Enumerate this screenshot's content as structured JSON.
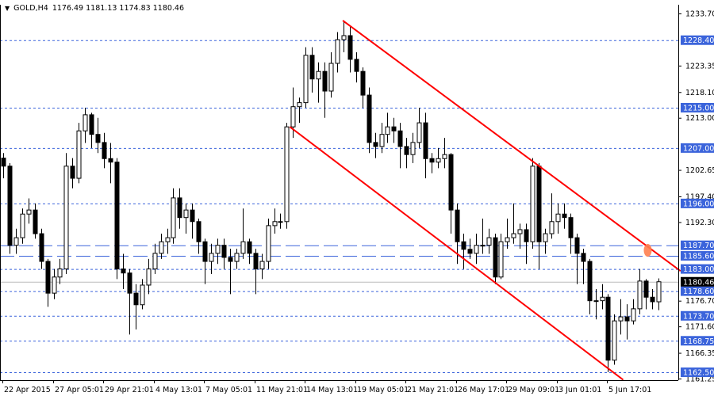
{
  "header": {
    "symbol": "GOLD,H4",
    "ohlc": "1176.49 1181.13 1174.83 1180.46",
    "menu_icon": "triangle-down-icon"
  },
  "chart_data": {
    "type": "candlestick",
    "symbol": "GOLD",
    "timeframe": "H4",
    "ylim": [
      1161.25,
      1233.7
    ],
    "grid": false,
    "y_tick_labels": [
      "1233.70",
      "1223.35",
      "1218.10",
      "1213.00",
      "1202.65",
      "1197.40",
      "1192.30",
      "1176.70",
      "1171.60",
      "1166.35",
      "1161.25"
    ],
    "x_tick_labels": [
      {
        "index": 0,
        "label": "22 Apr 2015"
      },
      {
        "index": 8,
        "label": "27 Apr 05:01"
      },
      {
        "index": 16,
        "label": "29 Apr 21:01"
      },
      {
        "index": 24,
        "label": "4 May 13:01"
      },
      {
        "index": 32,
        "label": "7 May 05:01"
      },
      {
        "index": 40,
        "label": "11 May 21:01"
      },
      {
        "index": 48,
        "label": "14 May 13:01"
      },
      {
        "index": 56,
        "label": "19 May 05:01"
      },
      {
        "index": 64,
        "label": "21 May 21:01"
      },
      {
        "index": 72,
        "label": "26 May 17:01"
      },
      {
        "index": 80,
        "label": "29 May 09:01"
      },
      {
        "index": 88,
        "label": "3 Jun 01:01"
      },
      {
        "index": 96,
        "label": "5 Jun 17:01"
      }
    ],
    "levels_dotted": [
      "1228.40",
      "1215.00",
      "1207.00",
      "1196.00",
      "1183.00",
      "1178.60",
      "1173.70",
      "1168.75",
      "1162.50"
    ],
    "levels_dashed": [
      "1187.70",
      "1185.60"
    ],
    "level_color": "#3b64db",
    "current_price": "1180.46",
    "current_price_line_color": "#bbbbbb",
    "trend_lines": [
      {
        "from": [
          53.9,
          1232.3
        ],
        "to": [
          107.5,
          1182.6
        ],
        "color": "#ff0000"
      },
      {
        "from": [
          45.5,
          1211.2
        ],
        "to": [
          98.4,
          1161.0
        ],
        "color": "#ff0000"
      }
    ],
    "marker": {
      "index": 102.3,
      "price": 1186.7,
      "color": "#ff7f50"
    },
    "candles": [
      [
        1205.0,
        1206,
        1201,
        1203.4
      ],
      [
        1203.4,
        1204,
        1186,
        1187.7
      ],
      [
        1187.7,
        1191,
        1186,
        1189.2
      ],
      [
        1189.2,
        1195,
        1188,
        1193.9
      ],
      [
        1193.9,
        1197,
        1192,
        1194.7
      ],
      [
        1194.7,
        1196,
        1189,
        1190.0
      ],
      [
        1190.0,
        1191,
        1183,
        1184.5
      ],
      [
        1184.5,
        1185,
        1175.5,
        1178.2
      ],
      [
        1178.2,
        1183,
        1177,
        1181.4
      ],
      [
        1181.4,
        1185,
        1180,
        1183.0
      ],
      [
        1183.0,
        1206,
        1182,
        1203.4
      ],
      [
        1203.4,
        1205,
        1199,
        1201.0
      ],
      [
        1201.0,
        1212,
        1200,
        1210.4
      ],
      [
        1210.4,
        1215,
        1208,
        1213.6
      ],
      [
        1213.6,
        1214,
        1207,
        1209.7
      ],
      [
        1209.7,
        1213,
        1206,
        1208.1
      ],
      [
        1208.1,
        1210,
        1203,
        1204.9
      ],
      [
        1204.9,
        1208,
        1200,
        1204.2
      ],
      [
        1204.2,
        1205,
        1181,
        1183.0
      ],
      [
        1183.0,
        1186,
        1179,
        1182.2
      ],
      [
        1182.2,
        1183,
        1170,
        1178.2
      ],
      [
        1178.2,
        1180,
        1171,
        1175.9
      ],
      [
        1175.9,
        1181,
        1175,
        1179.8
      ],
      [
        1179.8,
        1185,
        1178,
        1183.0
      ],
      [
        1183.0,
        1188,
        1182,
        1186.1
      ],
      [
        1186.1,
        1190,
        1185,
        1188.4
      ],
      [
        1188.4,
        1191,
        1186,
        1189.2
      ],
      [
        1189.2,
        1199,
        1188,
        1197.1
      ],
      [
        1197.1,
        1199,
        1191,
        1193.2
      ],
      [
        1193.2,
        1196,
        1190,
        1194.7
      ],
      [
        1194.7,
        1196,
        1189,
        1192.4
      ],
      [
        1192.4,
        1193,
        1186,
        1188.4
      ],
      [
        1188.4,
        1189,
        1180,
        1184.5
      ],
      [
        1184.5,
        1188,
        1182,
        1186.1
      ],
      [
        1186.1,
        1189,
        1184,
        1187.7
      ],
      [
        1187.7,
        1189,
        1183,
        1185.3
      ],
      [
        1185.3,
        1187,
        1178,
        1184.5
      ],
      [
        1184.5,
        1187,
        1183,
        1186.1
      ],
      [
        1186.1,
        1195,
        1185,
        1188.4
      ],
      [
        1188.4,
        1189,
        1184,
        1186.1
      ],
      [
        1186.1,
        1187,
        1178,
        1183.0
      ],
      [
        1183.0,
        1186,
        1181,
        1184.5
      ],
      [
        1184.5,
        1193,
        1183,
        1191.6
      ],
      [
        1191.6,
        1195,
        1190,
        1192.4
      ],
      [
        1192.4,
        1194,
        1191,
        1192.4
      ],
      [
        1192.4,
        1212,
        1191,
        1211.2
      ],
      [
        1211.2,
        1219,
        1209,
        1215.2
      ],
      [
        1215.2,
        1217,
        1212,
        1216.0
      ],
      [
        1216.0,
        1227,
        1215,
        1225.4
      ],
      [
        1225.4,
        1227,
        1218,
        1220.7
      ],
      [
        1220.7,
        1224,
        1216,
        1222.2
      ],
      [
        1222.2,
        1224,
        1213,
        1218.3
      ],
      [
        1218.3,
        1226,
        1217,
        1223.8
      ],
      [
        1223.8,
        1230,
        1222,
        1228.5
      ],
      [
        1228.5,
        1232.3,
        1226,
        1229.3
      ],
      [
        1229.3,
        1231,
        1222,
        1224.6
      ],
      [
        1224.6,
        1226,
        1220,
        1222.2
      ],
      [
        1222.2,
        1223,
        1215,
        1217.5
      ],
      [
        1217.5,
        1219,
        1206,
        1208.1
      ],
      [
        1208.1,
        1210,
        1205,
        1207.3
      ],
      [
        1207.3,
        1212,
        1206,
        1209.7
      ],
      [
        1209.7,
        1214,
        1208,
        1211.2
      ],
      [
        1211.2,
        1213,
        1208,
        1210.4
      ],
      [
        1210.4,
        1212,
        1203,
        1207.3
      ],
      [
        1207.3,
        1209,
        1203,
        1205.7
      ],
      [
        1205.7,
        1210,
        1204,
        1208.1
      ],
      [
        1208.1,
        1215,
        1207,
        1212.0
      ],
      [
        1212.0,
        1214,
        1201,
        1204.9
      ],
      [
        1204.9,
        1206,
        1202,
        1204.2
      ],
      [
        1204.2,
        1207,
        1203,
        1204.9
      ],
      [
        1204.9,
        1209,
        1203,
        1205.7
      ],
      [
        1205.7,
        1206,
        1190,
        1194.7
      ],
      [
        1194.7,
        1196,
        1184,
        1188.4
      ],
      [
        1188.4,
        1190,
        1183,
        1186.9
      ],
      [
        1186.9,
        1189,
        1185,
        1186.1
      ],
      [
        1186.1,
        1190,
        1184,
        1187.7
      ],
      [
        1187.7,
        1193,
        1186,
        1187.7
      ],
      [
        1187.7,
        1191,
        1186,
        1189.2
      ],
      [
        1189.2,
        1190,
        1180,
        1181.4
      ],
      [
        1181.4,
        1190,
        1181,
        1188.4
      ],
      [
        1188.4,
        1193,
        1187,
        1189.2
      ],
      [
        1189.2,
        1196,
        1188,
        1190.0
      ],
      [
        1190.0,
        1192,
        1187,
        1190.8
      ],
      [
        1190.8,
        1192,
        1184,
        1188.4
      ],
      [
        1188.4,
        1205,
        1187,
        1203.4
      ],
      [
        1203.4,
        1204,
        1183,
        1188.4
      ],
      [
        1188.4,
        1191,
        1186,
        1190.0
      ],
      [
        1190.0,
        1198,
        1189,
        1192.4
      ],
      [
        1192.4,
        1196,
        1190,
        1193.9
      ],
      [
        1193.9,
        1196,
        1191,
        1193.2
      ],
      [
        1193.2,
        1194,
        1186,
        1189.2
      ],
      [
        1189.2,
        1190,
        1180,
        1186.1
      ],
      [
        1186.1,
        1187,
        1180,
        1184.5
      ],
      [
        1184.5,
        1185,
        1174,
        1176.7
      ],
      [
        1176.7,
        1179,
        1173,
        1176.7
      ],
      [
        1176.7,
        1180,
        1175,
        1177.4
      ],
      [
        1177.4,
        1178,
        1162.5,
        1164.9
      ],
      [
        1164.9,
        1174,
        1164,
        1172.7
      ],
      [
        1172.7,
        1177,
        1170,
        1173.5
      ],
      [
        1173.5,
        1176,
        1169,
        1172.7
      ],
      [
        1172.7,
        1177,
        1172,
        1175.1
      ],
      [
        1175.1,
        1183,
        1174,
        1180.6
      ],
      [
        1180.6,
        1181,
        1175,
        1177.4
      ],
      [
        1177.4,
        1179,
        1175,
        1176.49
      ],
      [
        1176.49,
        1181.13,
        1174.83,
        1180.46
      ]
    ]
  }
}
